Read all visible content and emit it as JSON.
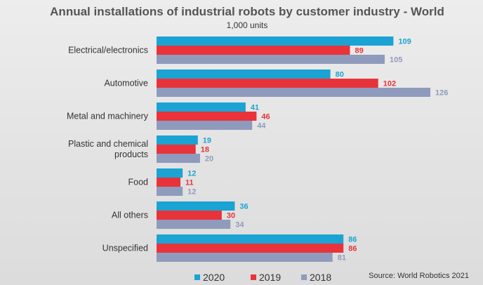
{
  "chart_data": {
    "type": "bar",
    "orientation": "horizontal",
    "title": "Annual installations of industrial robots by customer industry - World",
    "subtitle": "1,000 units",
    "categories": [
      [
        "Electrical/electronics"
      ],
      [
        "Automotive"
      ],
      [
        "Metal and machinery"
      ],
      [
        "Plastic and chemical",
        "products"
      ],
      [
        "Food"
      ],
      [
        "All others"
      ],
      [
        "Unspecified"
      ]
    ],
    "series": [
      {
        "name": "2020",
        "color": "#1ba3d3",
        "values": [
          109,
          80,
          41,
          19,
          12,
          36,
          86
        ]
      },
      {
        "name": "2019",
        "color": "#e8333b",
        "values": [
          89,
          102,
          46,
          18,
          11,
          30,
          86
        ]
      },
      {
        "name": "2018",
        "color": "#8f9bbd",
        "values": [
          105,
          126,
          44,
          20,
          12,
          34,
          81
        ]
      }
    ],
    "xlim": [
      0,
      126
    ],
    "grid": false,
    "legend_position": "bottom",
    "source": "Source: World Robotics 2021"
  }
}
